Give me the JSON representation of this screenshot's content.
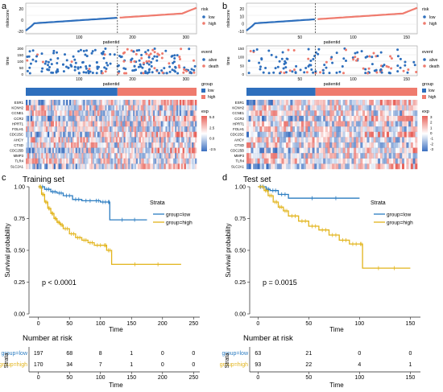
{
  "colors": {
    "low": "#2e6fbd",
    "high": "#ef7b6e",
    "alive": "#2e6fbd",
    "death": "#ef7b6e",
    "km_low": "#2b7cc1",
    "km_high": "#e2b41b",
    "hm_low": "#3b6fc0",
    "hm_high": "#e8625a",
    "grid": "#e6e6e6",
    "panel_bg": "#ffffff"
  },
  "panels": {
    "a": {
      "letter": "a",
      "risk": {
        "ylabel": "riskscore",
        "xlabel": "patientid",
        "yticks": [
          "20",
          "0",
          "-20"
        ],
        "xticks": [
          "100",
          "200",
          "300"
        ],
        "legend_title": "risk",
        "legend_items": [
          "low",
          "high"
        ],
        "n": 367,
        "cutoff": 197
      },
      "event": {
        "ylabel": "time",
        "xlabel": "patientid",
        "yticks": [
          "200",
          "150",
          "100",
          "50",
          "0"
        ],
        "xticks": [
          "100",
          "200",
          "300"
        ],
        "legend_title": "event",
        "legend_items": [
          "alive",
          "death"
        ]
      },
      "group": {
        "legend_title": "group",
        "legend_items": [
          "low",
          "high"
        ]
      },
      "heatmap": {
        "genes": [
          "ESR1",
          "KCNH2",
          "CCNE1",
          "CCR2",
          "HPRT1",
          "FOLH1",
          "CDC25C",
          "AHCY",
          "CTSD",
          "CDC25B",
          "MMP3",
          "TLR4",
          "SLC2A1"
        ],
        "legend_title": "exp",
        "legend_ticks": [
          "5.0",
          "2.5",
          "0.0",
          "-2.5"
        ]
      }
    },
    "b": {
      "letter": "b",
      "risk": {
        "ylabel": "riskscore",
        "xlabel": "patientid",
        "yticks": [
          "20",
          "10",
          "0",
          "-10"
        ],
        "xticks": [
          "50",
          "100",
          "150"
        ],
        "legend_title": "risk",
        "legend_items": [
          "low",
          "high"
        ],
        "n": 156,
        "cutoff": 63
      },
      "event": {
        "ylabel": "time",
        "xlabel": "patientid",
        "yticks": [
          "150",
          "100",
          "50",
          "0"
        ],
        "xticks": [
          "50",
          "100",
          "150"
        ],
        "legend_title": "event",
        "legend_items": [
          "alive",
          "death"
        ]
      },
      "group": {
        "legend_title": "group",
        "legend_items": [
          "low",
          "high"
        ]
      },
      "heatmap": {
        "genes": [
          "ESR1",
          "KCNH2",
          "CCNE1",
          "CCR2",
          "HPRT1",
          "FOLH1",
          "CDC25C",
          "AHCY",
          "CTSD",
          "CDC25B",
          "MMP3",
          "TLR4",
          "SLC2A1"
        ],
        "legend_title": "exp",
        "legend_ticks": [
          "3",
          "2",
          "1",
          "0",
          "-1",
          "-2",
          "-3"
        ]
      }
    },
    "c": {
      "letter": "c",
      "title": "Training set",
      "ylabel": "Survival probability",
      "xlabel": "Time",
      "pvalue": "p < 0.0001",
      "legend_title": "Strata",
      "legend_items": [
        "group=low",
        "group=high"
      ],
      "risk_table_title": "Number at risk",
      "risk_table_ylabel": "Strata",
      "risk_rows": [
        {
          "label": "group=low",
          "values": [
            "197",
            "68",
            "8",
            "1",
            "0",
            "0"
          ]
        },
        {
          "label": "group=high",
          "values": [
            "170",
            "34",
            "7",
            "1",
            "0",
            "0"
          ]
        }
      ]
    },
    "d": {
      "letter": "d",
      "title": "Test set",
      "ylabel": "Survival probability",
      "xlabel": "Time",
      "pvalue": "p = 0.0015",
      "legend_title": "Strata",
      "legend_items": [
        "group=low",
        "group=high"
      ],
      "risk_table_title": "Number at risk",
      "risk_table_ylabel": "Strata",
      "risk_rows": [
        {
          "label": "group=low",
          "values": [
            "63",
            "21",
            "0",
            "0"
          ]
        },
        {
          "label": "group=high",
          "values": [
            "93",
            "22",
            "4",
            "1"
          ]
        }
      ]
    }
  },
  "chart_data": [
    {
      "type": "line",
      "panel": "c",
      "title": "Training set",
      "xlabel": "Time",
      "ylabel": "Survival probability",
      "xlim": [
        -10,
        260
      ],
      "ylim": [
        0,
        1.0
      ],
      "xticks": [
        0,
        50,
        100,
        150,
        200,
        250
      ],
      "yticks": [
        0.0,
        0.25,
        0.5,
        0.75,
        1.0
      ],
      "series": [
        {
          "name": "group=low",
          "x": [
            0,
            10,
            20,
            30,
            40,
            55,
            70,
            90,
            100,
            112,
            115,
            175
          ],
          "y": [
            1.0,
            0.98,
            0.96,
            0.95,
            0.93,
            0.9,
            0.89,
            0.89,
            0.88,
            0.88,
            0.74,
            0.74
          ]
        },
        {
          "name": "group=high",
          "x": [
            0,
            5,
            10,
            15,
            20,
            25,
            30,
            35,
            40,
            50,
            60,
            70,
            80,
            90,
            105,
            110,
            118,
            230
          ],
          "y": [
            1.0,
            0.94,
            0.88,
            0.83,
            0.79,
            0.75,
            0.72,
            0.7,
            0.67,
            0.63,
            0.6,
            0.58,
            0.56,
            0.54,
            0.54,
            0.5,
            0.39,
            0.39
          ]
        }
      ]
    },
    {
      "type": "line",
      "panel": "d",
      "title": "Test set",
      "xlabel": "Time",
      "ylabel": "Survival probability",
      "xlim": [
        -5,
        160
      ],
      "ylim": [
        0,
        1.0
      ],
      "xticks": [
        0,
        50,
        100,
        150
      ],
      "yticks": [
        0.0,
        0.25,
        0.5,
        0.75,
        1.0
      ],
      "series": [
        {
          "name": "group=low",
          "x": [
            0,
            8,
            12,
            20,
            30,
            100
          ],
          "y": [
            1.0,
            0.98,
            0.97,
            0.94,
            0.91,
            0.91
          ]
        },
        {
          "name": "group=high",
          "x": [
            0,
            6,
            10,
            15,
            20,
            25,
            30,
            40,
            50,
            60,
            70,
            80,
            90,
            100,
            103,
            150
          ],
          "y": [
            1.0,
            0.97,
            0.93,
            0.88,
            0.84,
            0.81,
            0.77,
            0.73,
            0.69,
            0.66,
            0.62,
            0.58,
            0.55,
            0.55,
            0.36,
            0.36
          ]
        }
      ]
    }
  ]
}
